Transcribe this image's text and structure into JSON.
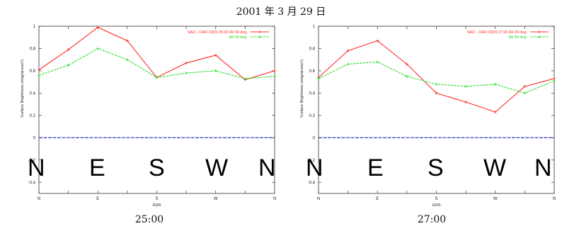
{
  "figure": {
    "title": "2001 年 3 月 29 日"
  },
  "overlay_letters": [
    "N",
    "E",
    "S",
    "W",
    "N",
    "N",
    "E",
    "S",
    "W",
    "N"
  ],
  "colors": {
    "series1": "#ff2b2b",
    "series2": "#22dd22",
    "zero_line": "#2222cc"
  },
  "chart_data": [
    {
      "type": "line",
      "caption": "25:00",
      "ylabel": "Surface Brightness (mag/arcsec²)",
      "xlabel": "Azm",
      "x": [
        0,
        1,
        2,
        3,
        4,
        5,
        6,
        7,
        8
      ],
      "xtick_labels": [
        "N",
        "",
        "E",
        "",
        "S",
        "",
        "W",
        "",
        "N"
      ],
      "ylim": [
        -0.5,
        1
      ],
      "yticks": [
        "1",
        "0.8",
        "0.6",
        "0.4",
        "0.2",
        "0",
        "-0.2",
        "-0.4"
      ],
      "zero_line": true,
      "legend_position": "top-right",
      "series": [
        {
          "name": "SAO - OAO 0329 25:00 Alt 30 deg.",
          "values": [
            0.61,
            0.79,
            0.99,
            0.87,
            0.54,
            0.67,
            0.74,
            0.52,
            0.6
          ]
        },
        {
          "name": "Alt 45 deg.",
          "values": [
            0.56,
            0.65,
            0.8,
            0.7,
            0.54,
            0.58,
            0.6,
            0.53,
            0.55
          ]
        }
      ]
    },
    {
      "type": "line",
      "caption": "27:00",
      "ylabel": "Surface Brightness (mag/arcsec²)",
      "xlabel": "Azm",
      "x": [
        0,
        1,
        2,
        3,
        4,
        5,
        6,
        7,
        8
      ],
      "xtick_labels": [
        "N",
        "",
        "E",
        "",
        "S",
        "",
        "W",
        "",
        "N"
      ],
      "ylim": [
        -0.5,
        1
      ],
      "yticks": [
        "1",
        "0.8",
        "0.6",
        "0.4",
        "0.2",
        "0",
        "-0.2",
        "-0.4"
      ],
      "zero_line": true,
      "legend_position": "top-right",
      "series": [
        {
          "name": "SAO - OAO 0329 27:00 Alt 30 deg.",
          "values": [
            0.54,
            0.78,
            0.87,
            0.66,
            0.4,
            0.32,
            0.23,
            0.46,
            0.53
          ]
        },
        {
          "name": "Alt 45 deg.",
          "values": [
            0.53,
            0.66,
            0.68,
            0.55,
            0.48,
            0.46,
            0.48,
            0.4,
            0.51
          ]
        }
      ]
    }
  ]
}
